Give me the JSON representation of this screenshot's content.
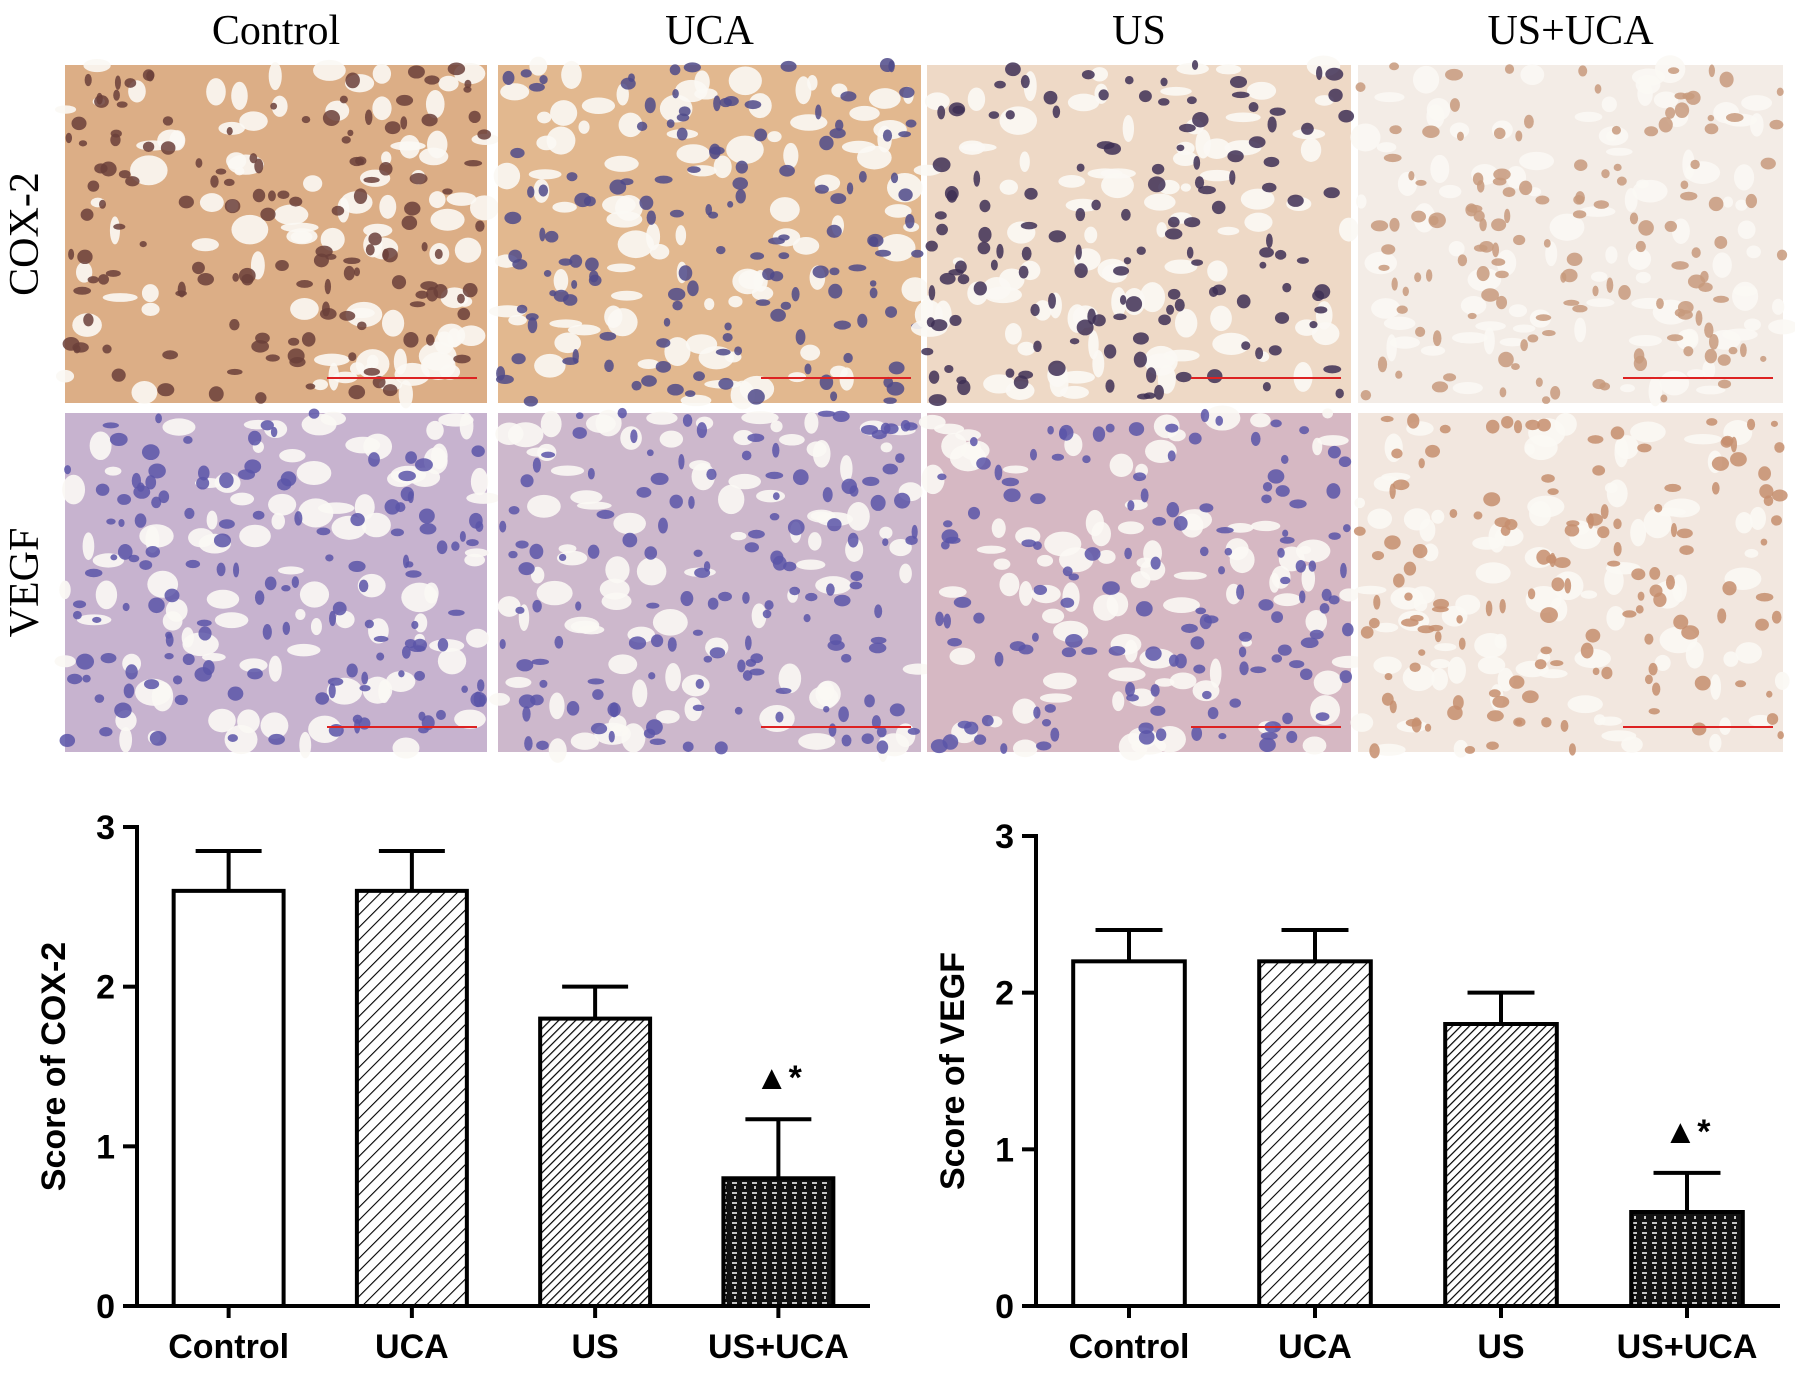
{
  "panel_grid": {
    "columns": [
      "Control",
      "UCA",
      "US",
      "US+UCA"
    ],
    "rows": [
      "COX-2",
      "VEGF"
    ]
  },
  "chart_data": [
    {
      "type": "bar",
      "ylabel": "Score of COX-2",
      "categories": [
        "Control",
        "UCA",
        "US",
        "US+UCA"
      ],
      "values": [
        2.6,
        2.6,
        1.8,
        0.8
      ],
      "errors": [
        0.25,
        0.25,
        0.2,
        0.37
      ],
      "patterns": [
        "white",
        "hatch-wide",
        "hatch-dense",
        "dash-grid"
      ],
      "ylim": [
        0,
        3
      ],
      "yticks": [
        0,
        1,
        2,
        3
      ],
      "annotations": [
        {
          "x": "US+UCA",
          "text": "▲*"
        }
      ]
    },
    {
      "type": "bar",
      "ylabel": "Score of VEGF",
      "categories": [
        "Control",
        "UCA",
        "US",
        "US+UCA"
      ],
      "values": [
        2.2,
        2.2,
        1.8,
        0.6
      ],
      "errors": [
        0.2,
        0.2,
        0.2,
        0.25
      ],
      "patterns": [
        "white",
        "hatch-wide",
        "hatch-dense",
        "dash-grid"
      ],
      "ylim": [
        0,
        3
      ],
      "yticks": [
        0,
        1,
        2,
        3
      ],
      "annotations": [
        {
          "x": "US+UCA",
          "text": "▲*"
        }
      ]
    }
  ]
}
